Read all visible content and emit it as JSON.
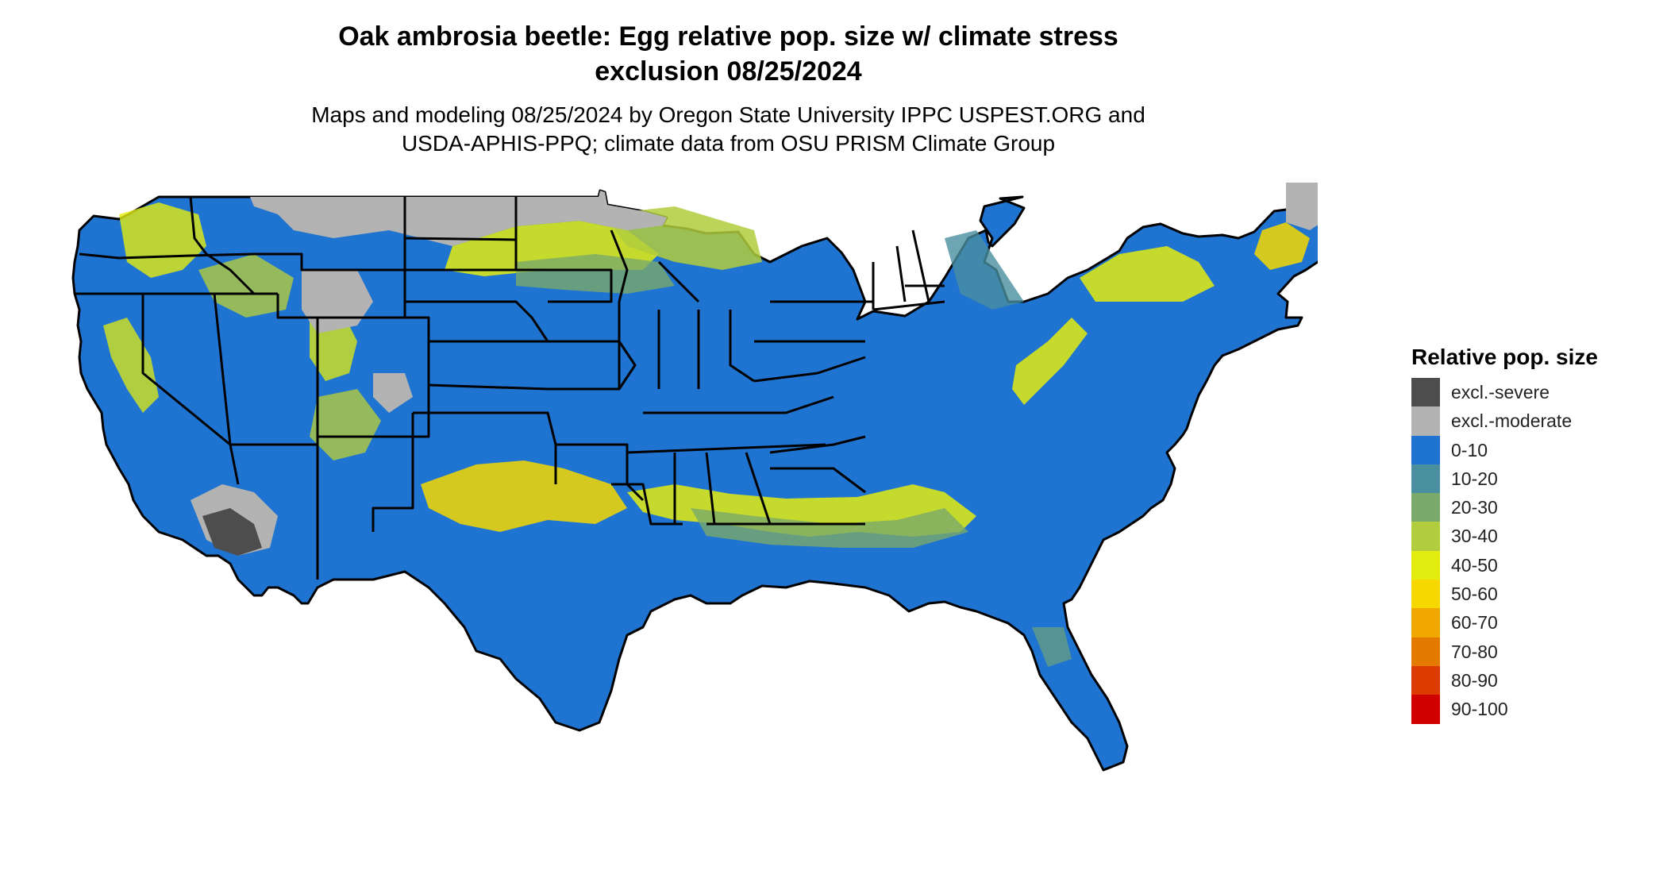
{
  "title": {
    "line1": "Oak ambrosia beetle: Egg relative pop. size w/ climate stress",
    "line2": "exclusion 08/25/2024"
  },
  "subtitle": {
    "line1": "Maps and modeling 08/25/2024 by Oregon State University IPPC USPEST.ORG and",
    "line2": "USDA-APHIS-PPQ; climate data from OSU PRISM Climate Group"
  },
  "legend": {
    "title": "Relative pop. size",
    "items": [
      {
        "label": "excl.-severe",
        "color": "#4d4d4d"
      },
      {
        "label": "excl.-moderate",
        "color": "#b3b3b3"
      },
      {
        "label": "0-10",
        "color": "#1f74d1"
      },
      {
        "label": "10-20",
        "color": "#4a8fa0"
      },
      {
        "label": "20-30",
        "color": "#7aa96c"
      },
      {
        "label": "30-40",
        "color": "#b1cc3d"
      },
      {
        "label": "40-50",
        "color": "#e3ec0f"
      },
      {
        "label": "50-60",
        "color": "#f6d800"
      },
      {
        "label": "60-70",
        "color": "#f0a800"
      },
      {
        "label": "70-80",
        "color": "#e57a00"
      },
      {
        "label": "80-90",
        "color": "#dc3c00"
      },
      {
        "label": "90-100",
        "color": "#d00000"
      }
    ]
  },
  "colors": {
    "base_fill": "#1f74d1",
    "border": "#000000"
  }
}
